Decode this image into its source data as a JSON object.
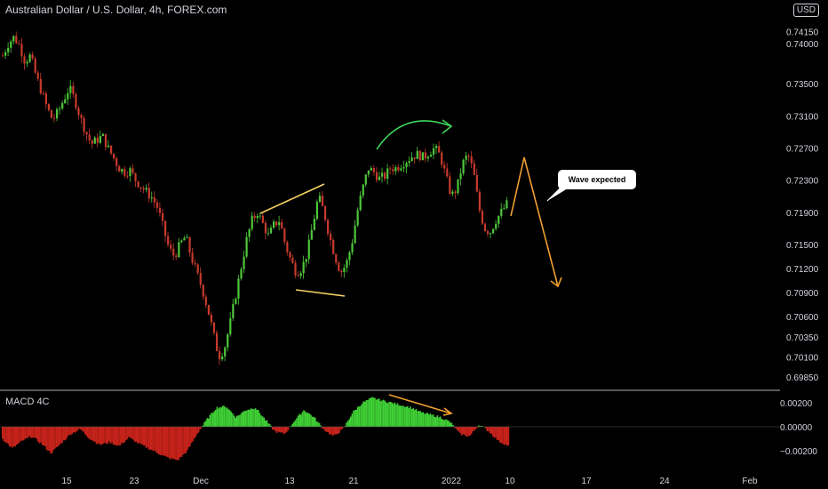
{
  "title": "Australian Dollar / U.S. Dollar, 4h, FOREX.com",
  "currency": "USD",
  "indicator_label": "MACD 4C",
  "callout_text": "Wave expected",
  "colors": {
    "up": "#4ec83a",
    "down": "#c83a2c",
    "annotation": "#f0a030",
    "trendline": "#f3d060",
    "arrow_green": "#3fd45a",
    "histo_up": "#3fcf35",
    "histo_down": "#c8231b",
    "axis_text": "#d1d4dc",
    "separator": "#b2b5be"
  },
  "chart_data": [
    {
      "type": "candlestick",
      "title": "Australian Dollar / U.S. Dollar, 4h, FOREX.com",
      "x_ticks": [
        "15",
        "23",
        "Dec",
        "13",
        "21",
        "2022",
        "10",
        "17",
        "24",
        "Feb"
      ],
      "y_ticks": [
        0.7415,
        0.74,
        0.735,
        0.731,
        0.727,
        0.723,
        0.719,
        0.715,
        0.712,
        0.709,
        0.706,
        0.7035,
        0.701,
        0.6985
      ],
      "y_tick_labels": [
        "0.74150",
        "0.74000",
        "0.73500",
        "0.73100",
        "0.72700",
        "0.72300",
        "0.71900",
        "0.71500",
        "0.71200",
        "0.70900",
        "0.70600",
        "0.70350",
        "0.70100",
        "0.69850"
      ],
      "price_path": [
        0.7385,
        0.74,
        0.7408,
        0.7398,
        0.7378,
        0.7385,
        0.736,
        0.734,
        0.732,
        0.7305,
        0.7315,
        0.733,
        0.7345,
        0.733,
        0.7308,
        0.729,
        0.7275,
        0.728,
        0.7285,
        0.727,
        0.7258,
        0.7245,
        0.724,
        0.7242,
        0.723,
        0.7222,
        0.7215,
        0.7208,
        0.7195,
        0.717,
        0.7145,
        0.7135,
        0.715,
        0.716,
        0.7135,
        0.7115,
        0.7095,
        0.707,
        0.704,
        0.701,
        0.702,
        0.705,
        0.7085,
        0.712,
        0.7155,
        0.718,
        0.719,
        0.7175,
        0.716,
        0.7175,
        0.718,
        0.715,
        0.713,
        0.7115,
        0.712,
        0.714,
        0.7175,
        0.721,
        0.719,
        0.716,
        0.7135,
        0.7115,
        0.7125,
        0.715,
        0.719,
        0.722,
        0.7245,
        0.724,
        0.7232,
        0.7235,
        0.7245,
        0.7245,
        0.725,
        0.7255,
        0.726,
        0.7262,
        0.7258,
        0.7265,
        0.727,
        0.726,
        0.7235,
        0.721,
        0.722,
        0.725,
        0.7262,
        0.724,
        0.7195,
        0.717,
        0.7165,
        0.718,
        0.719,
        0.72
      ]
    },
    {
      "type": "bar",
      "title": "MACD 4C",
      "y_ticks": [
        0.002,
        0.0,
        -0.002
      ],
      "y_tick_labels": [
        "0.00200",
        "0.00000",
        "−0.00200"
      ],
      "histogram_path": [
        -0.001,
        -0.0018,
        -0.0012,
        -0.0008,
        -0.0014,
        -0.0022,
        -0.0014,
        -0.0006,
        -0.0002,
        -0.001,
        -0.0015,
        -0.0013,
        -0.0016,
        -0.0009,
        -0.0014,
        -0.0018,
        -0.0022,
        -0.0026,
        -0.0028,
        -0.002,
        -0.0006,
        0.0006,
        0.0016,
        0.0017,
        0.0008,
        0.0014,
        0.0016,
        0.0006,
        -0.0004,
        -0.0006,
        0.0005,
        0.0014,
        0.0008,
        -0.0002,
        -0.0008,
        -0.0002,
        0.0012,
        0.002,
        0.0024,
        0.0022,
        0.002,
        0.0018,
        0.0016,
        0.0012,
        0.001,
        0.0008,
        0.0004,
        -0.0006,
        -0.0008,
        0.0002,
        -0.0004,
        -0.0012,
        -0.0016
      ]
    }
  ]
}
